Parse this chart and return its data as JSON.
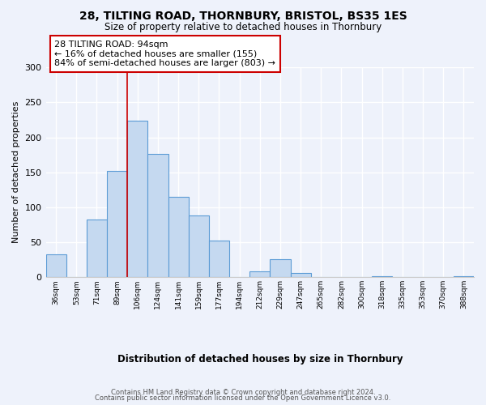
{
  "title": "28, TILTING ROAD, THORNBURY, BRISTOL, BS35 1ES",
  "subtitle": "Size of property relative to detached houses in Thornbury",
  "xlabel": "Distribution of detached houses by size in Thornbury",
  "ylabel": "Number of detached properties",
  "bar_labels": [
    "36sqm",
    "53sqm",
    "71sqm",
    "89sqm",
    "106sqm",
    "124sqm",
    "141sqm",
    "159sqm",
    "177sqm",
    "194sqm",
    "212sqm",
    "229sqm",
    "247sqm",
    "265sqm",
    "282sqm",
    "300sqm",
    "318sqm",
    "335sqm",
    "353sqm",
    "370sqm",
    "388sqm"
  ],
  "bar_values": [
    33,
    0,
    82,
    152,
    224,
    176,
    115,
    88,
    52,
    0,
    8,
    26,
    6,
    0,
    0,
    0,
    1,
    0,
    0,
    0,
    1
  ],
  "bar_color": "#c5d9f0",
  "bar_edge_color": "#5b9bd5",
  "annotation_title": "28 TILTING ROAD: 94sqm",
  "annotation_line1": "← 16% of detached houses are smaller (155)",
  "annotation_line2": "84% of semi-detached houses are larger (803) →",
  "annotation_box_color": "#ffffff",
  "annotation_box_edge": "#cc0000",
  "vline_color": "#cc0000",
  "ylim": [
    0,
    300
  ],
  "yticks": [
    0,
    50,
    100,
    150,
    200,
    250,
    300
  ],
  "footer_line1": "Contains HM Land Registry data © Crown copyright and database right 2024.",
  "footer_line2": "Contains public sector information licensed under the Open Government Licence v3.0.",
  "bg_color": "#eef2fb",
  "grid_color": "#ffffff",
  "vline_x_index": 3.5
}
